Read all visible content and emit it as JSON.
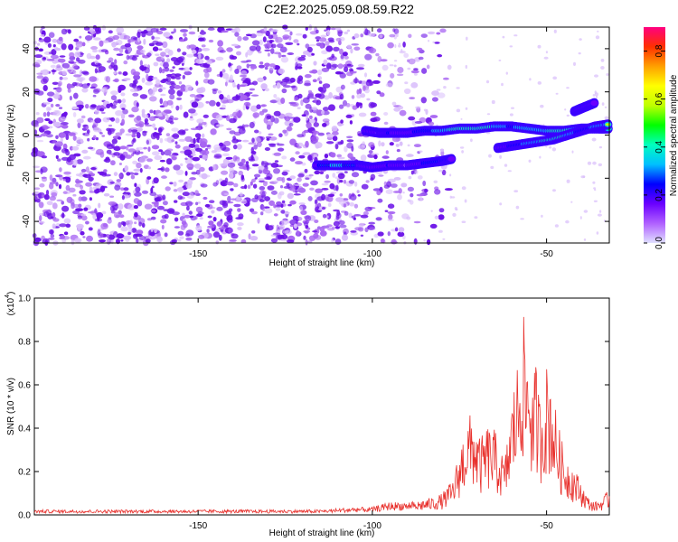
{
  "title": "C2E2.2025.059.08.59.R22",
  "colors": {
    "signal_line": "#e8302c",
    "speckle": "#7a1de0",
    "colorbar": [
      "#e0e0ff",
      "#b060ff",
      "#6a00ff",
      "#0000ff",
      "#00bfff",
      "#00ffbf",
      "#00ff00",
      "#bfff00",
      "#ffff00",
      "#ffa000",
      "#ff3000",
      "#ff0080"
    ]
  },
  "chart_data": [
    {
      "type": "heatmap",
      "xlabel": "Height of straight line (km)",
      "ylabel": "Frequency (Hz)",
      "xlim": [
        -197,
        -32
      ],
      "ylim": [
        -50,
        50
      ],
      "xticks": [
        -150,
        -100,
        -50
      ],
      "yticks": [
        -40,
        -20,
        0,
        20,
        40
      ],
      "colorbar": {
        "label": "Normalized spectral amplitude",
        "range": [
          0,
          0.9
        ],
        "ticks": [
          "0.0",
          "0.2",
          "0.4",
          "0.6",
          "0.8"
        ]
      },
      "tracks": [
        {
          "x": [
            -116,
            -110,
            -104,
            -100,
            -95,
            -90,
            -85,
            -80,
            -77
          ],
          "y": [
            -14,
            -14,
            -14,
            -15,
            -14,
            -14,
            -13,
            -12,
            -11
          ],
          "amplitude": [
            0.3,
            0.55,
            0.35,
            0.25,
            0.35,
            0.2,
            0.35,
            0.45,
            0.3
          ]
        },
        {
          "x": [
            -102,
            -98,
            -95,
            -90,
            -85,
            -80,
            -75,
            -70,
            -65,
            -60,
            -55,
            -50,
            -45,
            -40,
            -35,
            -32
          ],
          "y": [
            2,
            1,
            1,
            1,
            2,
            2,
            3,
            3,
            4,
            4,
            3,
            2,
            2,
            3,
            3,
            3
          ],
          "amplitude": [
            0.3,
            0.2,
            0.35,
            0.3,
            0.4,
            0.55,
            0.7,
            0.75,
            0.6,
            0.45,
            0.55,
            0.6,
            0.7,
            0.5,
            0.4,
            0.5
          ]
        },
        {
          "x": [
            -64,
            -60,
            -56,
            -52,
            -48,
            -44,
            -40,
            -36,
            -32
          ],
          "y": [
            -6,
            -5,
            -4,
            -3,
            -2,
            0,
            2,
            4,
            5
          ],
          "amplitude": [
            0.3,
            0.35,
            0.5,
            0.6,
            0.7,
            0.6,
            0.4,
            0.5,
            0.6
          ]
        },
        {
          "x": [
            -42,
            -39,
            -36
          ],
          "y": [
            11,
            13,
            15
          ],
          "amplitude": [
            0.25,
            0.3,
            0.2
          ]
        }
      ],
      "noise_region_x": [
        -197,
        -112
      ]
    },
    {
      "type": "line",
      "xlabel": "Height of straight line (km)",
      "ylabel": "SNR (10 * v/v)",
      "y_multiplier": "(x10",
      "y_multiplier_exp": "4",
      "y_multiplier_close": ")",
      "xlim": [
        -197,
        -32
      ],
      "ylim": [
        0,
        1.0
      ],
      "xticks": [
        -150,
        -100,
        -50
      ],
      "yticks": [
        "0.0",
        "0.2",
        "0.4",
        "0.6",
        "0.8",
        "1.0"
      ],
      "envelope": {
        "x": [
          -197,
          -170,
          -140,
          -115,
          -105,
          -100,
          -95,
          -90,
          -86,
          -83,
          -80,
          -77,
          -75,
          -73,
          -71,
          -69,
          -67,
          -65,
          -62,
          -60,
          -58,
          -57,
          -56,
          -55,
          -54,
          -53,
          -52,
          -50,
          -49,
          -47,
          -45,
          -42,
          -40,
          -38,
          -36,
          -34,
          -32
        ],
        "y": [
          0.02,
          0.02,
          0.02,
          0.02,
          0.03,
          0.03,
          0.05,
          0.05,
          0.07,
          0.08,
          0.1,
          0.16,
          0.3,
          0.45,
          0.48,
          0.35,
          0.42,
          0.4,
          0.25,
          0.55,
          0.75,
          1.0,
          0.8,
          0.85,
          0.6,
          0.72,
          0.55,
          0.7,
          0.68,
          0.45,
          0.3,
          0.22,
          0.15,
          0.08,
          0.06,
          0.08,
          0.12
        ]
      }
    }
  ]
}
